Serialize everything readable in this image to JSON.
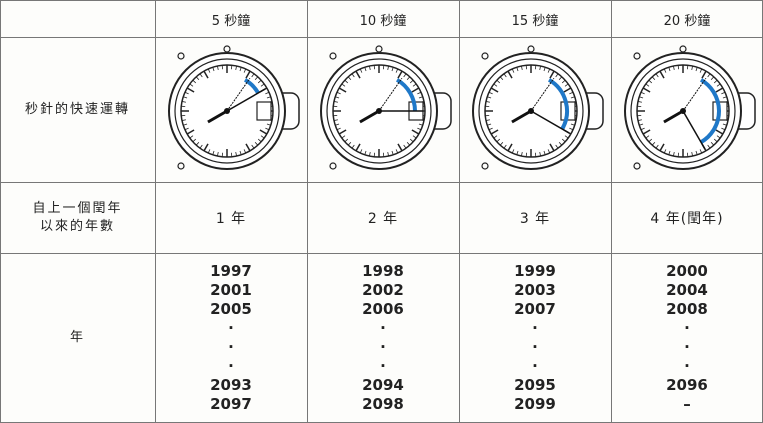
{
  "header": {
    "columns": [
      "5 秒鐘",
      "10 秒鐘",
      "15 秒鐘",
      "20 秒鐘"
    ]
  },
  "rows": [
    {
      "label": "秒針的快速運轉"
    },
    {
      "label": [
        "自上一個閏年",
        "以來的年數"
      ],
      "cells": [
        "1 年",
        "2 年",
        "3 年",
        "4 年(閏年)"
      ]
    },
    {
      "label": "年",
      "cells": [
        [
          "1997",
          "2001",
          "2005",
          "·",
          "·",
          "·",
          "2093",
          "2097"
        ],
        [
          "1998",
          "2002",
          "2006",
          "·",
          "·",
          "·",
          "2094",
          "2098"
        ],
        [
          "1999",
          "2003",
          "2007",
          "·",
          "·",
          "·",
          "2095",
          "2099"
        ],
        [
          "2000",
          "2004",
          "2008",
          "·",
          "·",
          "·",
          "2096",
          "–"
        ]
      ]
    }
  ]
}
